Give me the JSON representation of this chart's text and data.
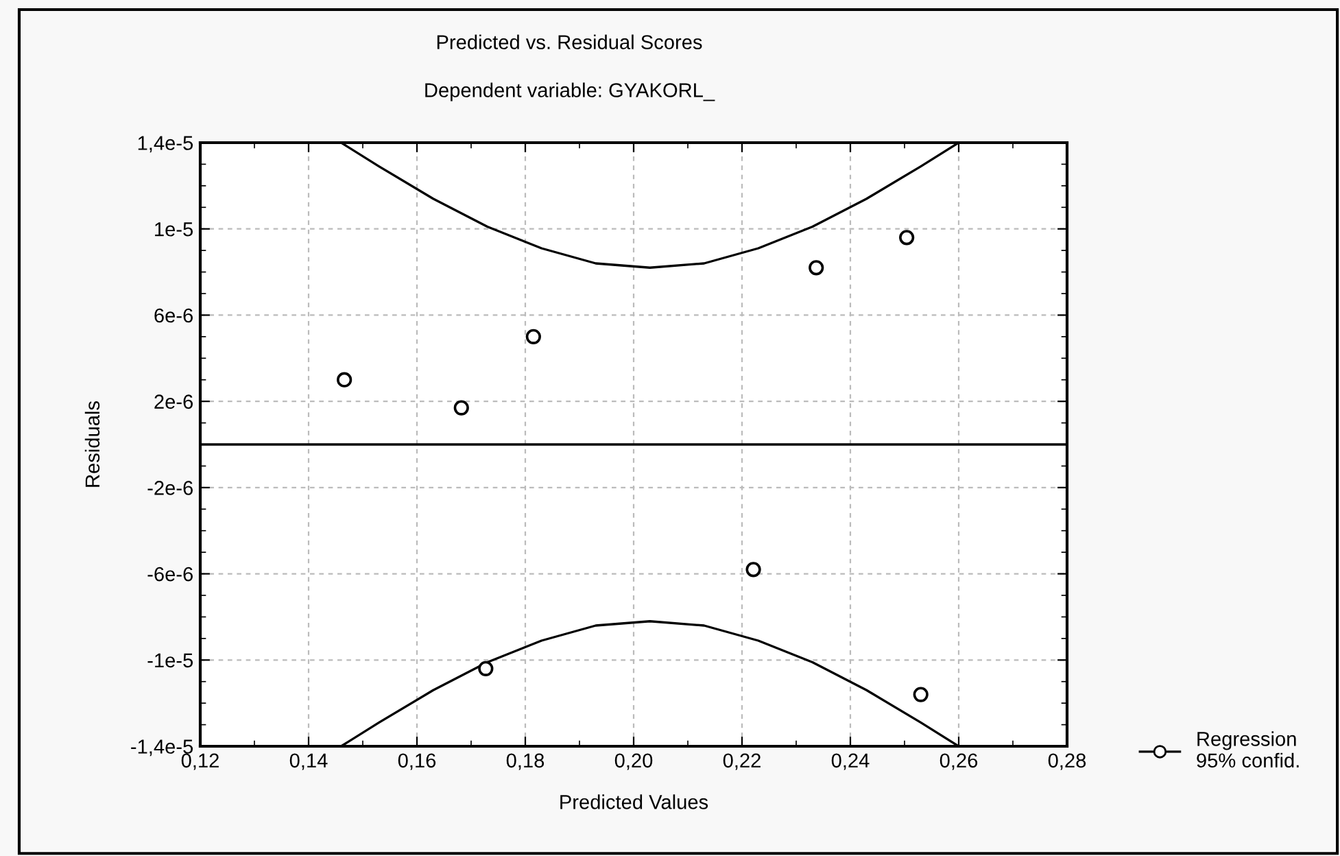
{
  "chart_data": {
    "type": "scatter",
    "title": "Predicted vs. Residual Scores",
    "subtitle": "Dependent variable: GYAKORL_",
    "xlabel": "Predicted Values",
    "ylabel": "Residuals",
    "series": [
      {
        "name": "Regression\n95% confid.",
        "color": "#000000",
        "marker": "circle",
        "x": [
          0.1466,
          0.1682,
          0.1815,
          0.1727,
          0.2221,
          0.2337,
          0.2504,
          0.253
        ],
        "values": [
          3e-06,
          1.7e-06,
          5e-06,
          -1.04e-05,
          -5.8e-06,
          8.2e-06,
          9.6e-06,
          -1.16e-05
        ]
      },
      {
        "type": "line",
        "color": "#000000",
        "x": [
          0.12,
          0.28
        ],
        "values": [
          0,
          0
        ]
      },
      {
        "type": "line",
        "color": "#000000",
        "x": [
          0.146,
          0.153,
          0.163,
          0.173,
          0.183,
          0.193,
          0.203,
          0.213,
          0.223,
          0.233,
          0.243,
          0.253,
          0.26
        ],
        "values": [
          1.4e-05,
          1.29e-05,
          1.14e-05,
          1.01e-05,
          9.1e-06,
          8.4e-06,
          8.2e-06,
          8.4e-06,
          9.1e-06,
          1.01e-05,
          1.14e-05,
          1.29e-05,
          1.4e-05
        ]
      },
      {
        "type": "line",
        "color": "#000000",
        "x": [
          0.146,
          0.153,
          0.163,
          0.173,
          0.183,
          0.193,
          0.203,
          0.213,
          0.223,
          0.233,
          0.243,
          0.253,
          0.26
        ],
        "values": [
          -1.4e-05,
          -1.29e-05,
          -1.14e-05,
          -1.01e-05,
          -9.1e-06,
          -8.4e-06,
          -8.2e-06,
          -8.4e-06,
          -9.1e-06,
          -1.01e-05,
          -1.14e-05,
          -1.29e-05,
          -1.4e-05
        ]
      }
    ],
    "xlim": [
      0.12,
      0.28
    ],
    "xticks": [
      {
        "value": 0.12,
        "label": "0,12"
      },
      {
        "value": 0.14,
        "label": "0,14"
      },
      {
        "value": 0.16,
        "label": "0,16"
      },
      {
        "value": 0.18,
        "label": "0,18"
      },
      {
        "value": 0.2,
        "label": "0,20"
      },
      {
        "value": 0.22,
        "label": "0,22"
      },
      {
        "value": 0.24,
        "label": "0,24"
      },
      {
        "value": 0.26,
        "label": "0,26"
      },
      {
        "value": 0.28,
        "label": "0,28"
      }
    ],
    "ylim": [
      -1.4e-05,
      1.4e-05
    ],
    "yticks": [
      {
        "value": -1.4e-05,
        "label": "-1,4e-5"
      },
      {
        "value": -1e-05,
        "label": "-1e-5"
      },
      {
        "value": -6e-06,
        "label": "-6e-6"
      },
      {
        "value": -2e-06,
        "label": "-2e-6"
      },
      {
        "value": 2e-06,
        "label": "2e-6"
      },
      {
        "value": 6e-06,
        "label": "6e-6"
      },
      {
        "value": 1e-05,
        "label": "1e-5"
      },
      {
        "value": 1.4e-05,
        "label": "1,4e-5"
      }
    ],
    "grid": true,
    "legend": "bottom right",
    "line_style": "solid"
  }
}
